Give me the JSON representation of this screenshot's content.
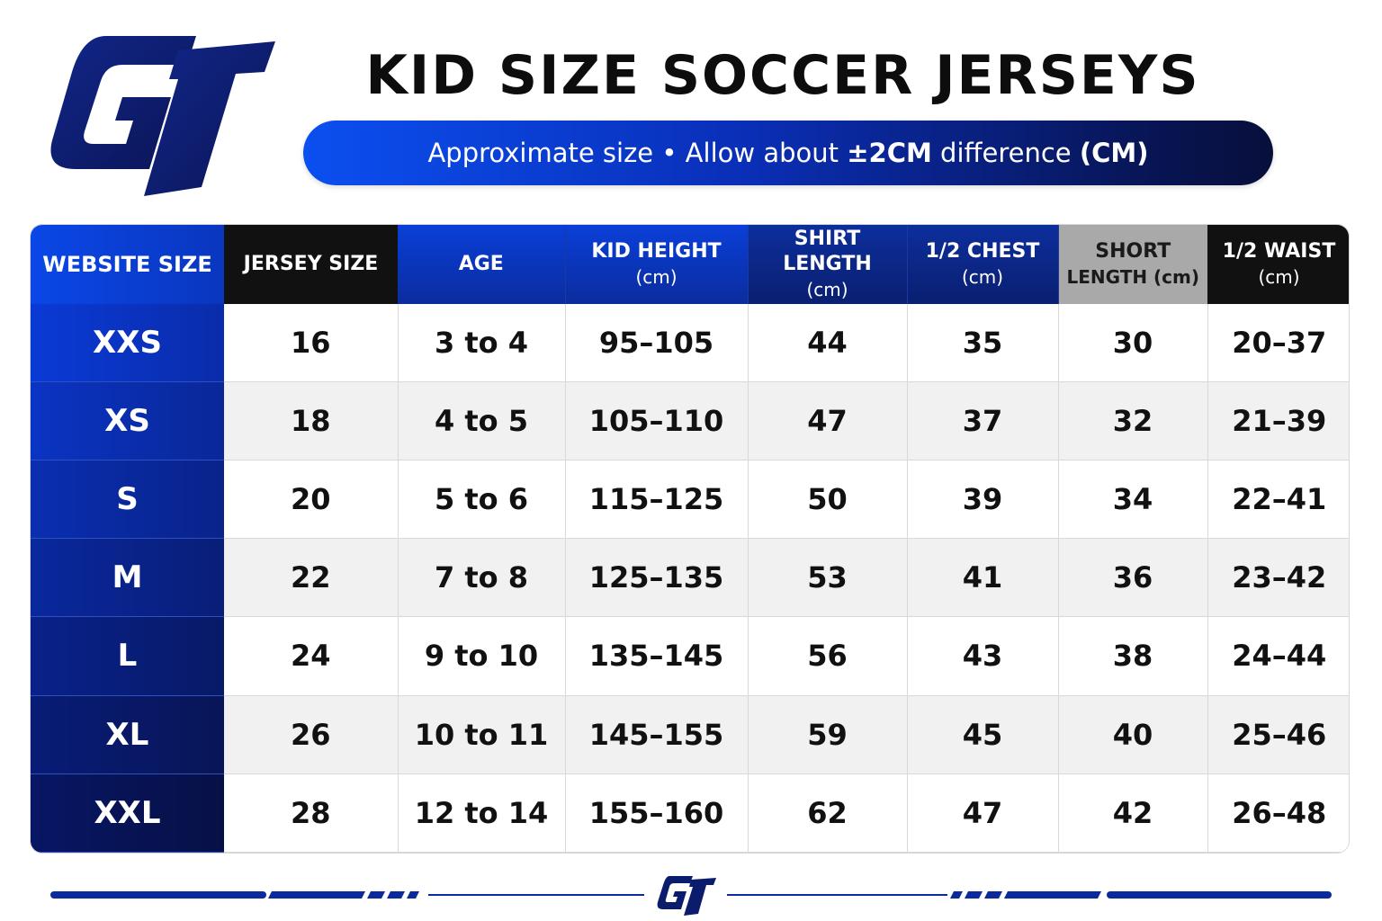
{
  "brand": {
    "logo_text": "GT",
    "primary_color": "#0a3fd8",
    "dark_color": "#0a1c6b"
  },
  "title": "KID SIZE SOCCER JERSEYS",
  "subtitle": {
    "part1": "Approximate size • Allow about ",
    "bold1": "±2CM",
    "part2": " difference ",
    "bold2": "(CM)"
  },
  "table": {
    "headers": [
      {
        "label": "WEBSITE SIZE",
        "unit": ""
      },
      {
        "label": "JERSEY SIZE",
        "unit": ""
      },
      {
        "label": "AGE",
        "unit": ""
      },
      {
        "label": "KID HEIGHT",
        "unit": "(cm)"
      },
      {
        "label": "SHIRT LENGTH",
        "unit": "(cm)"
      },
      {
        "label": "1/2 CHEST",
        "unit": "(cm)"
      },
      {
        "label": "SHORT",
        "unit": "LENGTH (cm)"
      },
      {
        "label": "1/2 WAIST",
        "unit": "(cm)"
      }
    ],
    "rows": [
      [
        "XXS",
        "16",
        "3 to 4",
        "95–105",
        "44",
        "35",
        "30",
        "20–37"
      ],
      [
        "XS",
        "18",
        "4 to 5",
        "105–110",
        "47",
        "37",
        "32",
        "21–39"
      ],
      [
        "S",
        "20",
        "5 to 6",
        "115–125",
        "50",
        "39",
        "34",
        "22–41"
      ],
      [
        "M",
        "22",
        "7 to 8",
        "125–135",
        "53",
        "41",
        "36",
        "23–42"
      ],
      [
        "L",
        "24",
        "9 to 10",
        "135–145",
        "56",
        "43",
        "38",
        "24–44"
      ],
      [
        "XL",
        "26",
        "10 to 11",
        "145–155",
        "59",
        "45",
        "40",
        "25–46"
      ],
      [
        "XXL",
        "28",
        "12 to 14",
        "155–160",
        "62",
        "47",
        "42",
        "26–48"
      ]
    ]
  },
  "footer": {
    "logo_text": "GT"
  }
}
